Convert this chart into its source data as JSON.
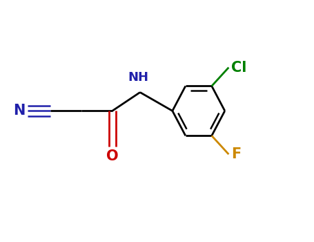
{
  "background_color": "#FFFFFF",
  "figsize": [
    4.55,
    3.5
  ],
  "dpi": 100,
  "atom_colors": {
    "N": "#2020AA",
    "O": "#CC0000",
    "Cl": "#008000",
    "F": "#CC8800",
    "C": "#000000",
    "bond": "#000000"
  },
  "bond_lw": 2.0,
  "font_size_atom": 14,
  "font_size_NH": 13
}
